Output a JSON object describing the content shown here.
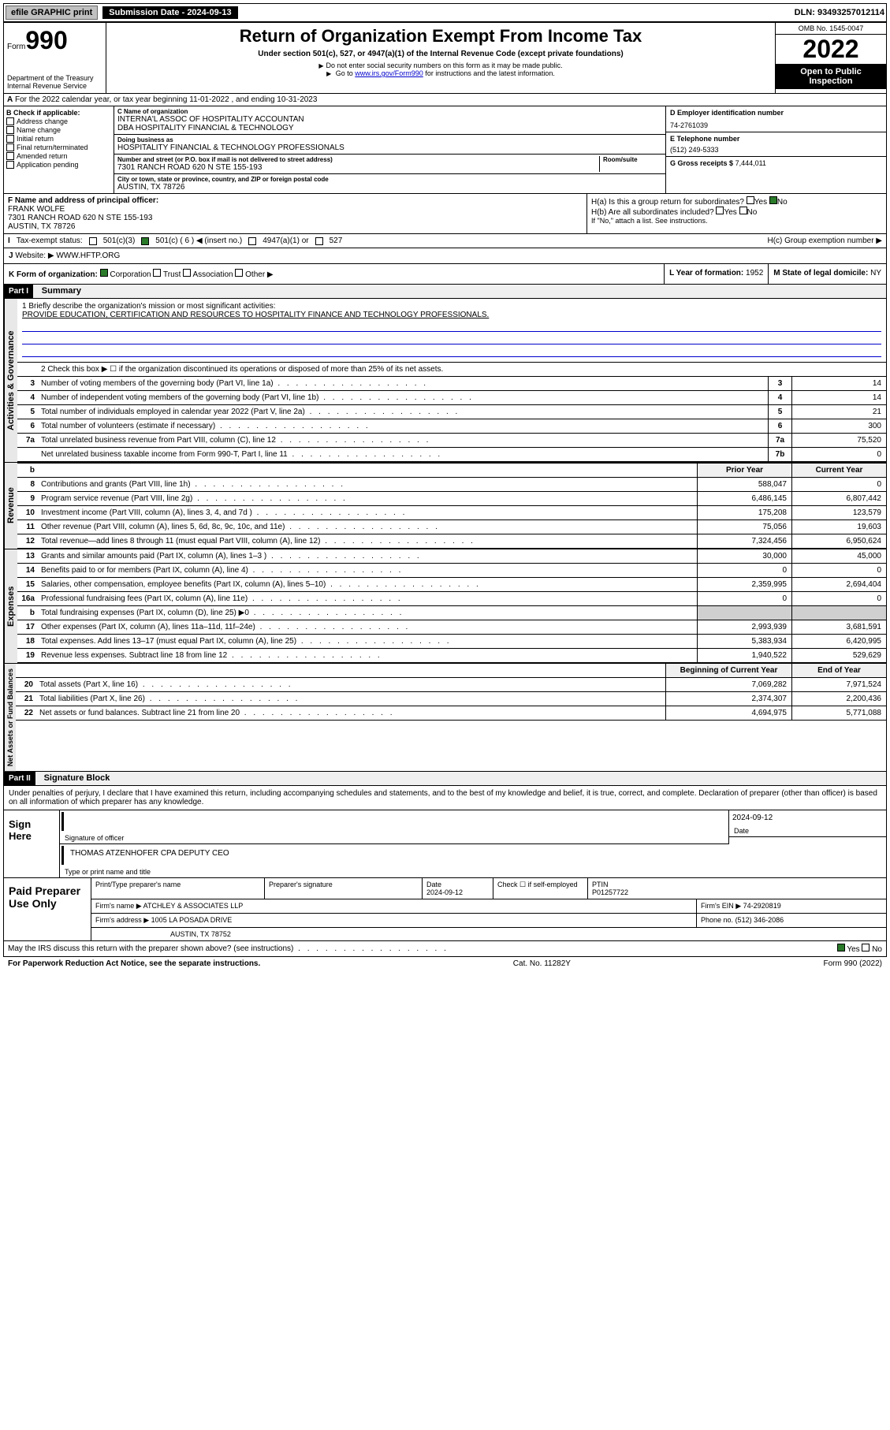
{
  "topbar": {
    "efile": "efile GRAPHIC print",
    "submission_label": "Submission Date - 2024-09-13",
    "dln": "DLN: 93493257012114"
  },
  "header": {
    "form_word": "Form",
    "form_num": "990",
    "dept": "Department of the Treasury Internal Revenue Service",
    "title": "Return of Organization Exempt From Income Tax",
    "subtitle": "Under section 501(c), 527, or 4947(a)(1) of the Internal Revenue Code (except private foundations)",
    "instr1": "Do not enter social security numbers on this form as it may be made public.",
    "instr2_pre": "Go to ",
    "instr2_link": "www.irs.gov/Form990",
    "instr2_post": " for instructions and the latest information.",
    "omb": "OMB No. 1545-0047",
    "year": "2022",
    "inspect": "Open to Public Inspection"
  },
  "row_a": "For the 2022 calendar year, or tax year beginning 11-01-2022   , and ending 10-31-2023",
  "section_b": {
    "label": "B Check if applicable:",
    "items": [
      "Address change",
      "Name change",
      "Initial return",
      "Final return/terminated",
      "Amended return",
      "Application pending"
    ]
  },
  "section_c": {
    "name_label": "C Name of organization",
    "name1": "INTERNA'L ASSOC OF HOSPITALITY ACCOUNTAN",
    "name2": "DBA HOSPITALITY FINANCIAL & TECHNOLOGY",
    "dba_label": "Doing business as",
    "dba": "HOSPITALITY FINANCIAL & TECHNOLOGY PROFESSIONALS",
    "street_label": "Number and street (or P.O. box if mail is not delivered to street address)",
    "room_label": "Room/suite",
    "street": "7301 RANCH ROAD 620 N STE 155-193",
    "city_label": "City or town, state or province, country, and ZIP or foreign postal code",
    "city": "AUSTIN, TX  78726"
  },
  "section_d": {
    "label": "D Employer identification number",
    "val": "74-2761039"
  },
  "section_e": {
    "label": "E Telephone number",
    "val": "(512) 249-5333"
  },
  "section_g": {
    "label": "G Gross receipts $",
    "val": "7,444,011"
  },
  "section_f": {
    "label": "F Name and address of principal officer:",
    "name": "FRANK WOLFE",
    "addr1": "7301 RANCH ROAD 620 N STE 155-193",
    "addr2": "AUSTIN, TX  78726"
  },
  "section_h": {
    "ha": "H(a)  Is this a group return for subordinates?",
    "hb": "H(b)  Are all subordinates included?",
    "hb_note": "If \"No,\" attach a list. See instructions.",
    "hc": "H(c)  Group exemption number ▶",
    "yes": "Yes",
    "no": "No"
  },
  "section_i": {
    "label": "Tax-exempt status:",
    "opts": [
      "501(c)(3)",
      "501(c) ( 6 ) ◀ (insert no.)",
      "4947(a)(1) or",
      "527"
    ]
  },
  "section_j": {
    "label": "Website: ▶",
    "val": "WWW.HFTP.ORG"
  },
  "section_k": {
    "label": "K Form of organization:",
    "opts": [
      "Corporation",
      "Trust",
      "Association",
      "Other ▶"
    ]
  },
  "section_l": {
    "label": "L Year of formation: ",
    "val": "1952"
  },
  "section_m": {
    "label": "M State of legal domicile: ",
    "val": "NY"
  },
  "part1": {
    "num": "Part I",
    "title": "Summary"
  },
  "mission": {
    "label": "1  Briefly describe the organization's mission or most significant activities:",
    "text": "PROVIDE EDUCATION, CERTIFICATION AND RESOURCES TO HOSPITALITY FINANCE AND TECHNOLOGY PROFESSIONALS."
  },
  "line2": "2    Check this box ▶ ☐  if the organization discontinued its operations or disposed of more than 25% of its net assets.",
  "vert_labels": {
    "ag": "Activities & Governance",
    "rev": "Revenue",
    "exp": "Expenses",
    "nafb": "Net Assets or Fund Balances"
  },
  "col_hdrs": {
    "py": "Prior Year",
    "cy": "Current Year",
    "boy": "Beginning of Current Year",
    "eoy": "End of Year"
  },
  "rows_ag": [
    {
      "n": "3",
      "t": "Number of voting members of the governing body (Part VI, line 1a)",
      "box": "3",
      "v": "14"
    },
    {
      "n": "4",
      "t": "Number of independent voting members of the governing body (Part VI, line 1b)",
      "box": "4",
      "v": "14"
    },
    {
      "n": "5",
      "t": "Total number of individuals employed in calendar year 2022 (Part V, line 2a)",
      "box": "5",
      "v": "21"
    },
    {
      "n": "6",
      "t": "Total number of volunteers (estimate if necessary)",
      "box": "6",
      "v": "300"
    },
    {
      "n": "7a",
      "t": "Total unrelated business revenue from Part VIII, column (C), line 12",
      "box": "7a",
      "v": "75,520"
    },
    {
      "n": "",
      "t": "Net unrelated business taxable income from Form 990-T, Part I, line 11",
      "box": "7b",
      "v": "0"
    }
  ],
  "rows_rev": [
    {
      "n": "8",
      "t": "Contributions and grants (Part VIII, line 1h)",
      "py": "588,047",
      "cy": "0"
    },
    {
      "n": "9",
      "t": "Program service revenue (Part VIII, line 2g)",
      "py": "6,486,145",
      "cy": "6,807,442"
    },
    {
      "n": "10",
      "t": "Investment income (Part VIII, column (A), lines 3, 4, and 7d )",
      "py": "175,208",
      "cy": "123,579"
    },
    {
      "n": "11",
      "t": "Other revenue (Part VIII, column (A), lines 5, 6d, 8c, 9c, 10c, and 11e)",
      "py": "75,056",
      "cy": "19,603"
    },
    {
      "n": "12",
      "t": "Total revenue—add lines 8 through 11 (must equal Part VIII, column (A), line 12)",
      "py": "7,324,456",
      "cy": "6,950,624"
    }
  ],
  "rows_exp": [
    {
      "n": "13",
      "t": "Grants and similar amounts paid (Part IX, column (A), lines 1–3 )",
      "py": "30,000",
      "cy": "45,000"
    },
    {
      "n": "14",
      "t": "Benefits paid to or for members (Part IX, column (A), line 4)",
      "py": "0",
      "cy": "0"
    },
    {
      "n": "15",
      "t": "Salaries, other compensation, employee benefits (Part IX, column (A), lines 5–10)",
      "py": "2,359,995",
      "cy": "2,694,404"
    },
    {
      "n": "16a",
      "t": "Professional fundraising fees (Part IX, column (A), line 11e)",
      "py": "0",
      "cy": "0"
    },
    {
      "n": "b",
      "t": "Total fundraising expenses (Part IX, column (D), line 25) ▶0",
      "py": "",
      "cy": "",
      "shaded": true
    },
    {
      "n": "17",
      "t": "Other expenses (Part IX, column (A), lines 11a–11d, 11f–24e)",
      "py": "2,993,939",
      "cy": "3,681,591"
    },
    {
      "n": "18",
      "t": "Total expenses. Add lines 13–17 (must equal Part IX, column (A), line 25)",
      "py": "5,383,934",
      "cy": "6,420,995"
    },
    {
      "n": "19",
      "t": "Revenue less expenses. Subtract line 18 from line 12",
      "py": "1,940,522",
      "cy": "529,629"
    }
  ],
  "rows_na": [
    {
      "n": "20",
      "t": "Total assets (Part X, line 16)",
      "py": "7,069,282",
      "cy": "7,971,524"
    },
    {
      "n": "21",
      "t": "Total liabilities (Part X, line 26)",
      "py": "2,374,307",
      "cy": "2,200,436"
    },
    {
      "n": "22",
      "t": "Net assets or fund balances. Subtract line 21 from line 20",
      "py": "4,694,975",
      "cy": "5,771,088"
    }
  ],
  "part2": {
    "num": "Part II",
    "title": "Signature Block"
  },
  "sig_intro": "Under penalties of perjury, I declare that I have examined this return, including accompanying schedules and statements, and to the best of my knowledge and belief, it is true, correct, and complete. Declaration of preparer (other than officer) is based on all information of which preparer has any knowledge.",
  "sign": {
    "here": "Sign Here",
    "sig_label": "Signature of officer",
    "date_label": "Date",
    "date": "2024-09-12",
    "name": "THOMAS ATZENHOFER CPA  DEPUTY CEO",
    "name_label": "Type or print name and title"
  },
  "prep": {
    "title": "Paid Preparer Use Only",
    "cols": [
      "Print/Type preparer's name",
      "Preparer's signature",
      "Date",
      "",
      "PTIN"
    ],
    "date": "2024-09-12",
    "check_label": "Check ☐ if self-employed",
    "ptin": "P01257722",
    "firm_name_label": "Firm's name    ▶",
    "firm_name": "ATCHLEY & ASSOCIATES LLP",
    "firm_ein_label": "Firm's EIN ▶",
    "firm_ein": "74-2920819",
    "firm_addr_label": "Firm's address ▶",
    "firm_addr1": "1005 LA POSADA DRIVE",
    "firm_addr2": "AUSTIN, TX  78752",
    "phone_label": "Phone no.",
    "phone": "(512) 346-2086"
  },
  "discuss": {
    "text": "May the IRS discuss this return with the preparer shown above? (see instructions)",
    "yes": "Yes",
    "no": "No"
  },
  "footer": {
    "left": "For Paperwork Reduction Act Notice, see the separate instructions.",
    "mid": "Cat. No. 11282Y",
    "right": "Form 990 (2022)"
  }
}
